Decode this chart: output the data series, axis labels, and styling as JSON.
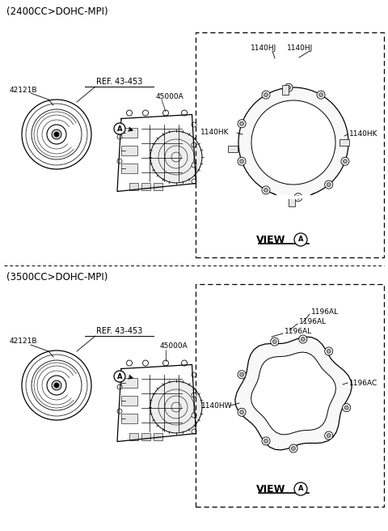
{
  "bg_color": "#ffffff",
  "title_top": "(2400CC>DOHC-MPI)",
  "title_bottom": "(3500CC>DOHC-MPI)",
  "top_section": {
    "label_42121B": "42121B",
    "label_ref": "REF. 43-453",
    "label_45000A": "45000A",
    "view_label_hj1": "1140HJ",
    "view_label_hj2": "1140HJ",
    "view_label_hk_left": "1140HK",
    "view_label_hk_right": "1140HK",
    "view_title": "VIEW"
  },
  "bottom_section": {
    "label_42121B": "42121B",
    "label_ref": "REF. 43-453",
    "label_45000A": "45000A",
    "view_label_al1": "1196AL",
    "view_label_al2": "1196AL",
    "view_label_al3": "1196AL",
    "view_label_ac": "1196AC",
    "view_label_hw": "1140HW",
    "view_title": "VIEW"
  },
  "line_color": "#000000",
  "text_color": "#000000",
  "font_size_title": 8.5,
  "font_size_label": 6.5,
  "font_size_view": 9
}
